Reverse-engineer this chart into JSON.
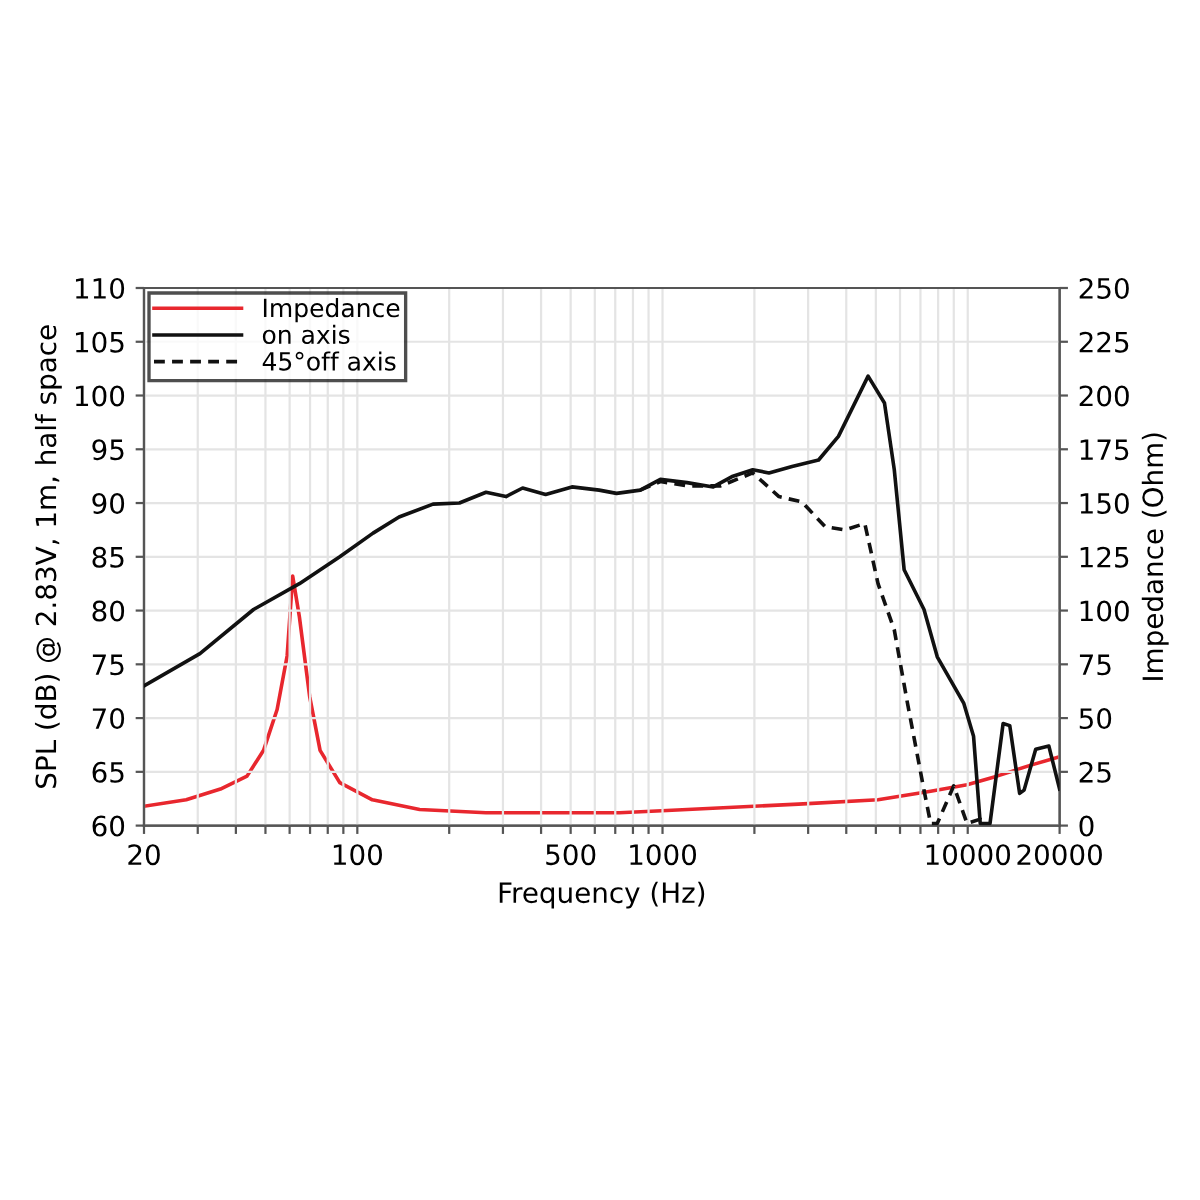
{
  "chart_data": {
    "type": "line",
    "xlabel": "Frequency (Hz)",
    "ylabel": "SPL (dB) @ 2.83V, 1m, half space",
    "y2label": "Impedance (Ohm)",
    "log": "x",
    "grid": true,
    "legend": "top left",
    "xlim": [
      20,
      20000
    ],
    "xticks": [
      20,
      {
        "value": 30,
        "label": null
      },
      {
        "value": 40,
        "label": null
      },
      {
        "value": 50,
        "label": null
      },
      {
        "value": 60,
        "label": null
      },
      {
        "value": 70,
        "label": null
      },
      {
        "value": 80,
        "label": null
      },
      {
        "value": 90,
        "label": null
      },
      100,
      {
        "value": 200,
        "label": null
      },
      {
        "value": 300,
        "label": null
      },
      {
        "value": 400,
        "label": null
      },
      500,
      {
        "value": 600,
        "label": null
      },
      {
        "value": 700,
        "label": null
      },
      {
        "value": 800,
        "label": null
      },
      {
        "value": 900,
        "label": null
      },
      1000,
      {
        "value": 2000,
        "label": null
      },
      {
        "value": 3000,
        "label": null
      },
      {
        "value": 4000,
        "label": null
      },
      {
        "value": 5000,
        "label": null
      },
      {
        "value": 6000,
        "label": null
      },
      {
        "value": 7000,
        "label": null
      },
      {
        "value": 8000,
        "label": null
      },
      {
        "value": 9000,
        "label": null
      },
      10000,
      20000
    ],
    "ylim": [
      60,
      110
    ],
    "yticks": [
      60,
      65,
      70,
      75,
      80,
      85,
      90,
      95,
      100,
      105,
      110
    ],
    "y2lim": [
      0,
      250
    ],
    "y2ticks": [
      0,
      25,
      50,
      75,
      100,
      125,
      150,
      175,
      200,
      225,
      250
    ],
    "series": [
      {
        "name": "Impedance",
        "color": "#e8272e",
        "axis": "y2",
        "line_style": "solid",
        "x": [
          20,
          27.5,
          35.6,
          43.5,
          49.3,
          54.6,
          58.9,
          61.4,
          64.6,
          69.8,
          75.5,
          87.6,
          112,
          160,
          264,
          723,
          1034,
          2790,
          5083,
          7560,
          9950,
          12460,
          16000,
          20000
        ],
        "values": [
          9,
          12,
          17,
          23,
          35,
          54,
          79,
          116,
          97,
          60,
          35,
          20,
          12,
          7.5,
          6,
          6,
          7,
          10,
          12,
          16,
          19,
          23,
          28,
          32
        ]
      },
      {
        "name": "on axis",
        "color": "#111111",
        "line_style": "solid",
        "x": [
          20,
          30.5,
          45.7,
          64.6,
          87.6,
          112.6,
          137,
          177,
          216,
          264,
          307,
          348,
          414,
          505,
          620,
          707,
          845,
          984,
          1203,
          1466,
          1701,
          1975,
          2232,
          2657,
          3246,
          3770,
          4716,
          5336,
          5746,
          6190,
          7190,
          7946,
          9700,
          10450,
          10990,
          11830,
          13060,
          13730,
          14790,
          15300,
          16700,
          18440,
          20000
        ],
        "values": [
          73.0,
          76.0,
          80.1,
          82.5,
          85.0,
          87.2,
          88.7,
          89.9,
          90.0,
          91.0,
          90.6,
          91.4,
          90.8,
          91.5,
          91.2,
          90.9,
          91.2,
          92.2,
          91.9,
          91.5,
          92.5,
          93.1,
          92.8,
          93.4,
          94.0,
          96.2,
          101.8,
          99.3,
          93.1,
          83.8,
          80.1,
          75.7,
          71.4,
          68.3,
          60.2,
          60.2,
          69.5,
          69.3,
          63.0,
          63.3,
          67.1,
          67.4,
          63.4
        ]
      },
      {
        "name": "45°off axis",
        "color": "#111111",
        "line_style": "dashed",
        "x": [
          845,
          984,
          1203,
          1551,
          1975,
          2407,
          2864,
          3409,
          3960,
          4600,
          5083,
          5746,
          6346,
          7190,
          7560,
          7946,
          9000,
          9950,
          10990,
          11200
        ],
        "values": [
          91.2,
          92.0,
          91.6,
          91.6,
          92.8,
          90.6,
          90.1,
          87.8,
          87.5,
          88.1,
          82.5,
          78.2,
          71.4,
          63.3,
          60.2,
          60.2,
          63.7,
          60.2,
          60.6,
          60.2
        ]
      }
    ]
  }
}
